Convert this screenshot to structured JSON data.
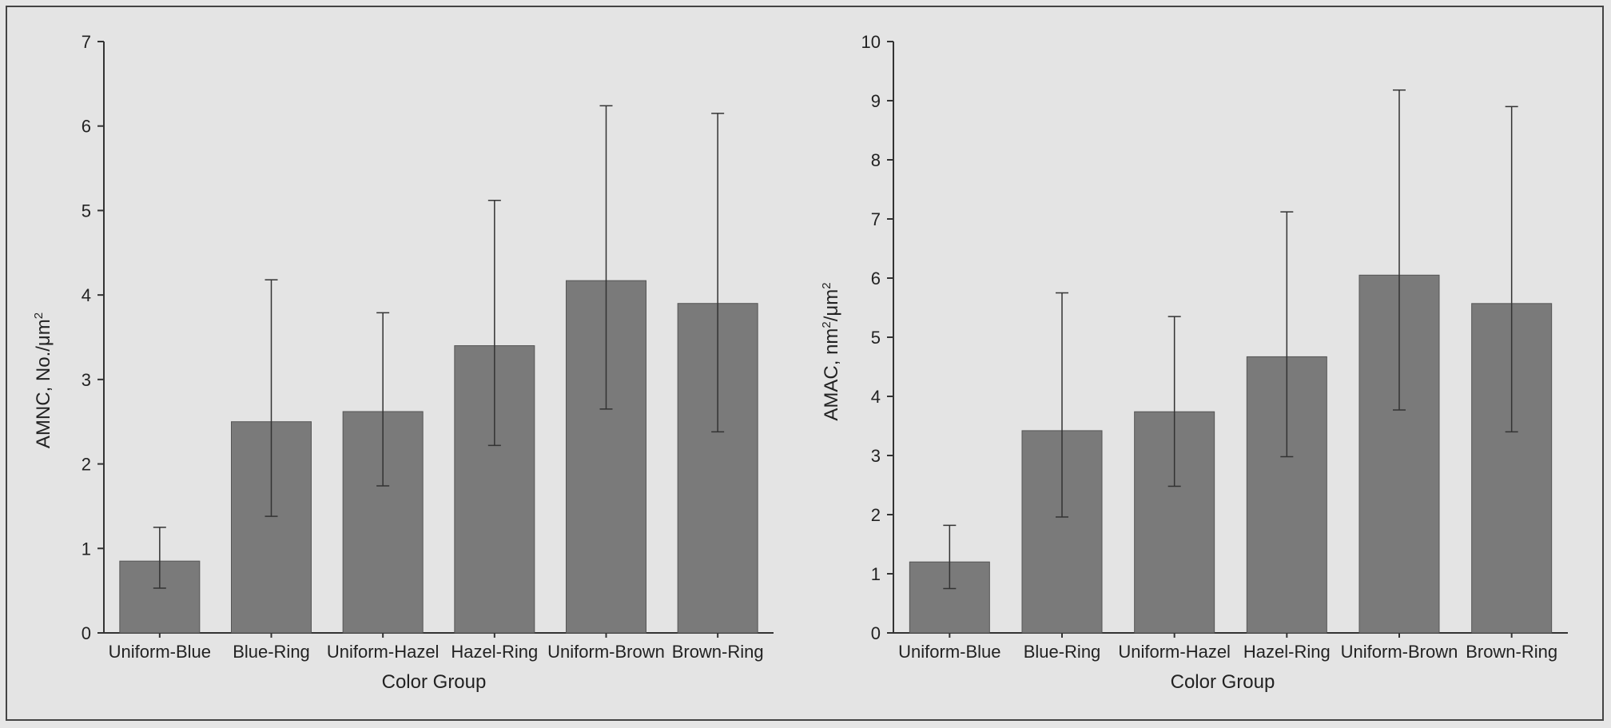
{
  "chart_data": [
    {
      "type": "bar",
      "categories": [
        "Uniform-Blue",
        "Blue-Ring",
        "Uniform-Hazel",
        "Hazel-Ring",
        "Uniform-Brown",
        "Brown-Ring"
      ],
      "values": [
        0.85,
        2.5,
        2.62,
        3.4,
        4.17,
        3.9
      ],
      "error_low": [
        0.53,
        1.38,
        1.74,
        2.22,
        2.65,
        2.38
      ],
      "error_high": [
        1.25,
        4.18,
        3.79,
        5.12,
        6.24,
        6.15
      ],
      "xlabel": "Color Group",
      "ylabel_main": "AMNC, No./",
      "ylabel_unit": "μm",
      "ylabel_sup": "2",
      "ylim": [
        0,
        7
      ],
      "yticks": [
        0,
        1,
        2,
        3,
        4,
        5,
        6,
        7
      ],
      "bar_color": "#7a7a7a",
      "grid": false
    },
    {
      "type": "bar",
      "categories": [
        "Uniform-Blue",
        "Blue-Ring",
        "Uniform-Hazel",
        "Hazel-Ring",
        "Uniform-Brown",
        "Brown-Ring"
      ],
      "values": [
        1.2,
        3.42,
        3.74,
        4.67,
        6.05,
        5.57
      ],
      "error_low": [
        0.75,
        1.96,
        2.48,
        2.98,
        3.77,
        3.4
      ],
      "error_high": [
        1.82,
        5.75,
        5.35,
        7.12,
        9.18,
        8.9
      ],
      "xlabel": "Color Group",
      "ylabel_main": "AMAC, nm",
      "ylabel_sup": "2",
      "ylabel_mid": "/",
      "ylabel_unit": "μm",
      "ylabel_sup2": "2",
      "ylim": [
        0,
        10
      ],
      "yticks": [
        0,
        1,
        2,
        3,
        4,
        5,
        6,
        7,
        8,
        9,
        10
      ],
      "bar_color": "#7a7a7a",
      "grid": false
    }
  ]
}
